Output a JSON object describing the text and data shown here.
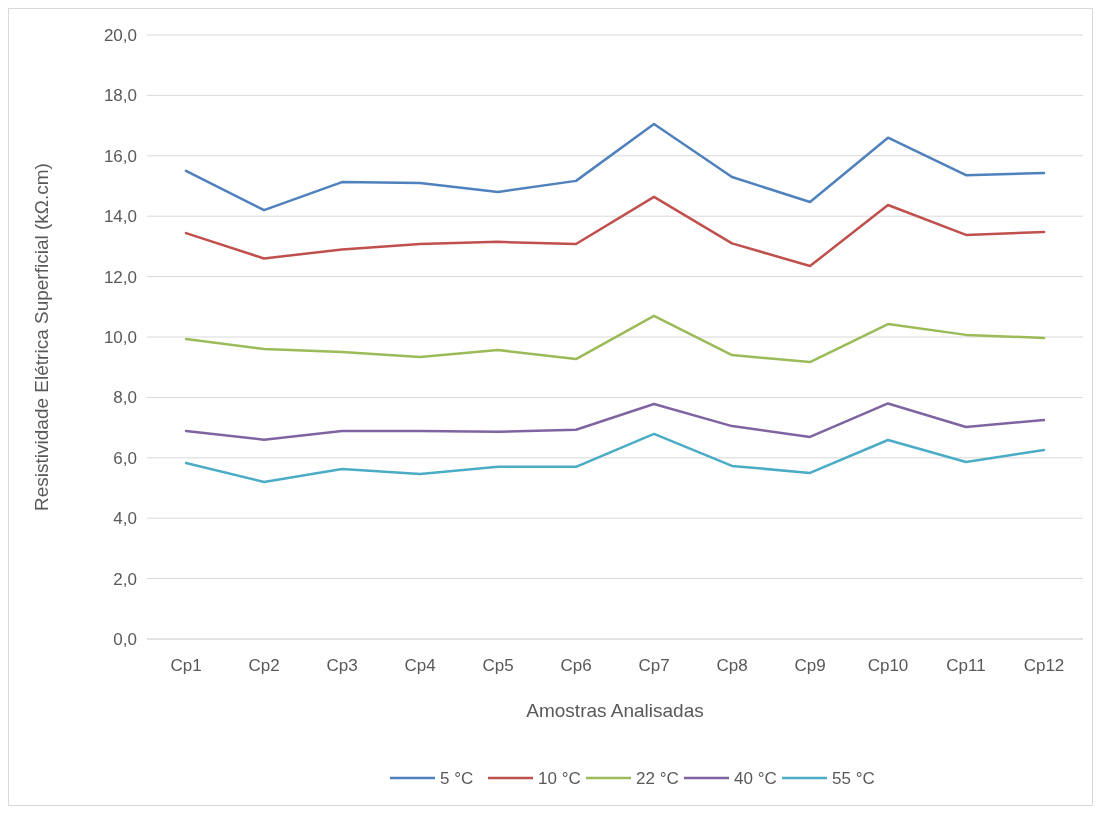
{
  "chart_data": {
    "type": "line",
    "xlabel": "Amostras Analisadas",
    "ylabel": "Resistividade Elétrica Superficial (kΩ.cm)",
    "categories": [
      "Cp1",
      "Cp2",
      "Cp3",
      "Cp4",
      "Cp5",
      "Cp6",
      "Cp7",
      "Cp8",
      "Cp9",
      "Cp10",
      "Cp11",
      "Cp12"
    ],
    "series": [
      {
        "name": "5 °C",
        "color": "#4f81bd",
        "values": [
          15.5,
          14.2,
          15.13,
          15.1,
          14.8,
          15.17,
          17.05,
          15.3,
          14.47,
          16.6,
          15.36,
          15.43
        ]
      },
      {
        "name": "10 °C",
        "color": "#c0504d",
        "values": [
          13.44,
          12.6,
          12.9,
          13.08,
          13.15,
          13.08,
          14.64,
          13.1,
          12.35,
          14.37,
          13.38,
          13.48
        ]
      },
      {
        "name": "22 °C",
        "color": "#9bbb59",
        "values": [
          9.93,
          9.6,
          9.5,
          9.34,
          9.57,
          9.27,
          10.7,
          9.4,
          9.17,
          10.43,
          10.07,
          9.97
        ]
      },
      {
        "name": "40 °C",
        "color": "#8064a2",
        "values": [
          6.89,
          6.6,
          6.89,
          6.89,
          6.86,
          6.93,
          7.78,
          7.05,
          6.69,
          7.8,
          7.02,
          7.25
        ]
      },
      {
        "name": "55 °C",
        "color": "#4bacc6",
        "values": [
          5.83,
          5.2,
          5.63,
          5.46,
          5.7,
          5.7,
          6.79,
          5.73,
          5.5,
          6.59,
          5.86,
          6.26
        ]
      }
    ],
    "ylim": [
      0,
      20
    ],
    "yticks": [
      {
        "value": 0,
        "label": "0,0"
      },
      {
        "value": 2,
        "label": "2,0"
      },
      {
        "value": 4,
        "label": "4,0"
      },
      {
        "value": 6,
        "label": "6,0"
      },
      {
        "value": 8,
        "label": "8,0"
      },
      {
        "value": 10,
        "label": "10,0"
      },
      {
        "value": 12,
        "label": "12,0"
      },
      {
        "value": 14,
        "label": "14,0"
      },
      {
        "value": 16,
        "label": "16,0"
      },
      {
        "value": 18,
        "label": "18,0"
      },
      {
        "value": 20,
        "label": "20,0"
      }
    ],
    "grid": "y",
    "legend": "bottom",
    "marker": "none",
    "line_style": "solid"
  }
}
